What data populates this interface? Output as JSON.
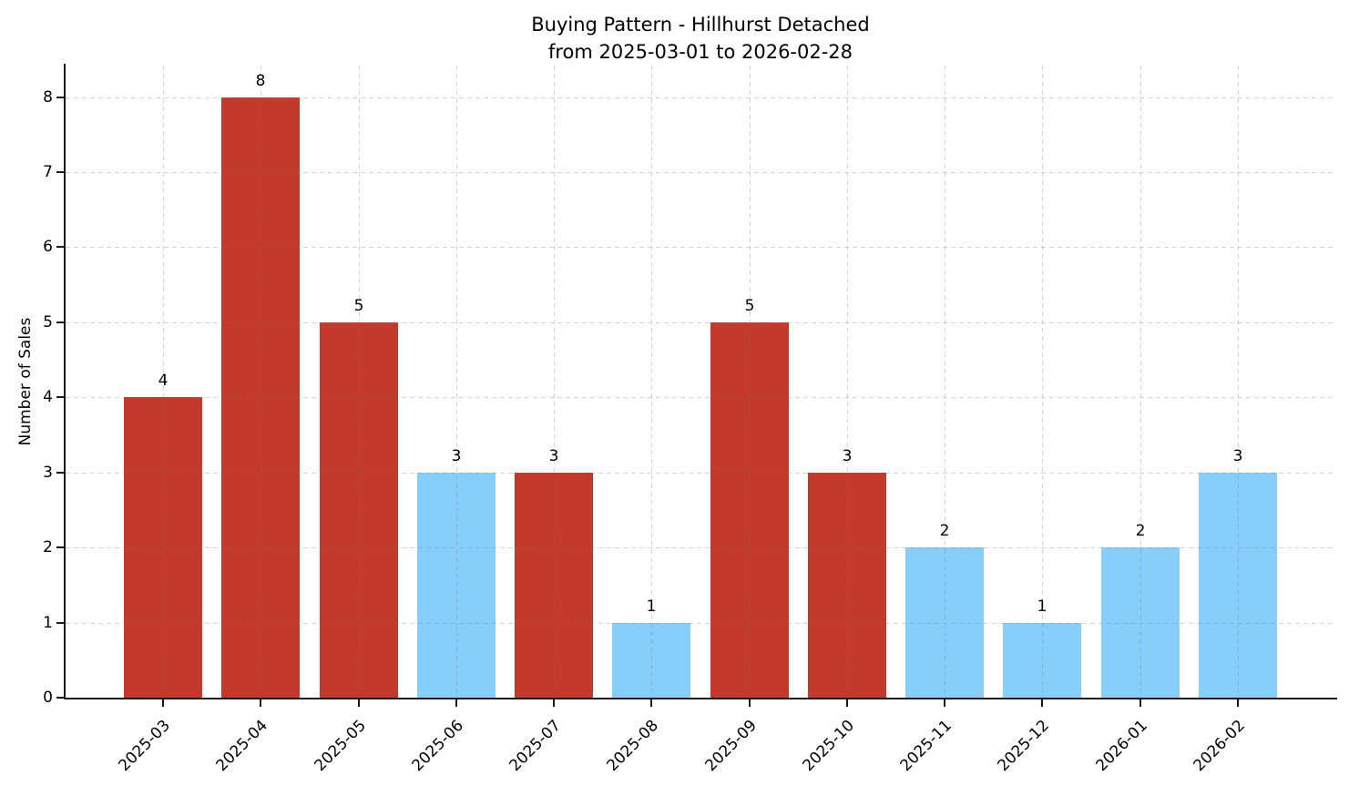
{
  "figure": {
    "title_line1": "Buying Pattern - Hillhurst Detached",
    "title_line2": "from 2025-03-01 to 2026-02-28"
  },
  "chart_data": {
    "type": "bar",
    "title": "Buying Pattern - Hillhurst Detached\nfrom 2025-03-01 to 2026-02-28",
    "xlabel": "",
    "ylabel": "Number of Sales",
    "categories": [
      "2025-03",
      "2025-04",
      "2025-05",
      "2025-06",
      "2025-07",
      "2025-08",
      "2025-09",
      "2025-10",
      "2025-11",
      "2025-12",
      "2026-01",
      "2026-02"
    ],
    "values": [
      4,
      8,
      5,
      3,
      3,
      1,
      5,
      3,
      2,
      1,
      2,
      3
    ],
    "value_labels": [
      "4",
      "8",
      "5",
      "3",
      "3",
      "1",
      "5",
      "3",
      "2",
      "1",
      "2",
      "3"
    ],
    "bar_colors": [
      "#c3392b",
      "#c3392b",
      "#c3392b",
      "#87CEFA",
      "#c3392b",
      "#87CEFA",
      "#c3392b",
      "#c3392b",
      "#87CEFA",
      "#87CEFA",
      "#87CEFA",
      "#87CEFA"
    ],
    "yticks": [
      0,
      1,
      2,
      3,
      4,
      5,
      6,
      7,
      8
    ],
    "ylim": [
      0,
      8.42
    ],
    "grid": "dashed light-gray gridlines on both axes, drawn over bars",
    "legend_position": "none"
  },
  "colors": {
    "bar_red": "#c3392b",
    "bar_blue": "#87CEFA",
    "grid": "#c8c8c8",
    "axis": "#1a1a1a",
    "text": "#000000",
    "background": "#ffffff"
  }
}
